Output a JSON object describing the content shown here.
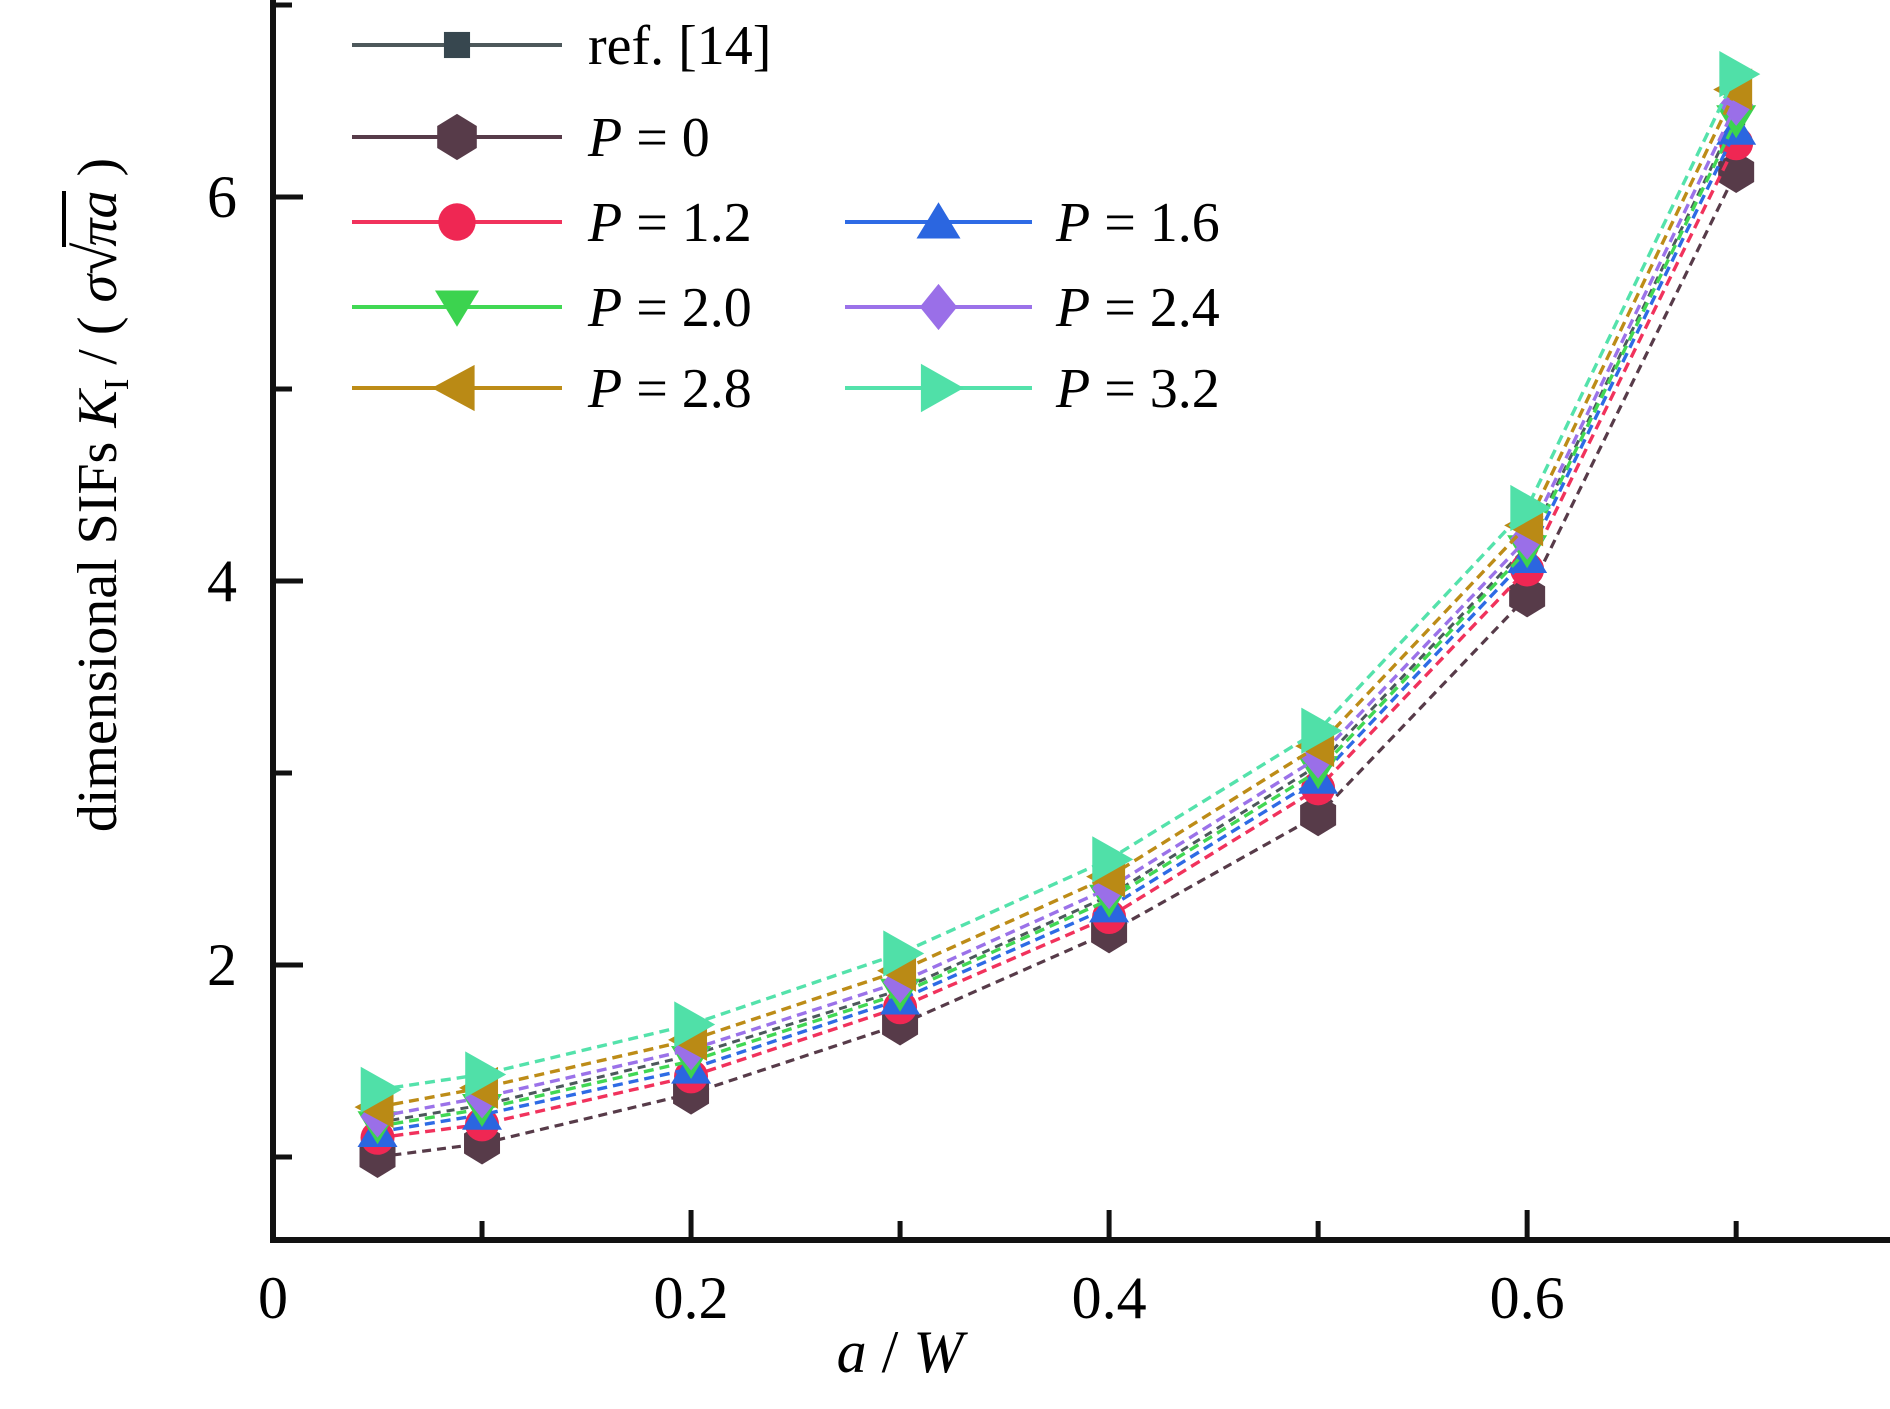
{
  "figure": {
    "background": "#ffffff",
    "text_color": "#000000",
    "axis_color": "#111111"
  },
  "labels": {
    "y": {
      "prefix": "dimensional SIFs ",
      "K": "K",
      "I_sub": "I",
      "mid": " / ( ",
      "sigma": "σ",
      "radical": "√",
      "radicand": "πa",
      "close": " )"
    },
    "x": {
      "a": "a",
      "slash": " / ",
      "W": "W"
    }
  },
  "chart_data": {
    "type": "line",
    "xlabel": "a / W",
    "ylabel": "dimensional SIFs K_I / ( σ√(πa) )",
    "xlim": [
      0,
      0.7736
    ],
    "ylim": [
      0.5677,
      7.026
    ],
    "grid": false,
    "legend_position": "upper-left, two columns",
    "x": [
      0.05,
      0.1,
      0.2,
      0.3,
      0.4,
      0.5,
      0.6,
      0.7
    ],
    "x_ticks": {
      "major": [
        {
          "v": 0,
          "label": "0"
        },
        {
          "v": 0.2,
          "label": "0.2"
        },
        {
          "v": 0.4,
          "label": "0.4"
        },
        {
          "v": 0.6,
          "label": "0.6"
        }
      ],
      "minor": [
        0.1,
        0.3,
        0.5,
        0.7
      ]
    },
    "y_ticks": {
      "major": [
        {
          "v": 2,
          "label": "2"
        },
        {
          "v": 4,
          "label": "4"
        },
        {
          "v": 6,
          "label": "6"
        }
      ],
      "minor": [
        1,
        3,
        5,
        7
      ]
    },
    "series": [
      {
        "name": "ref. [14]",
        "marker": "square",
        "color": "#4d585b",
        "marker_color": "#37474f",
        "dash": "8 6",
        "width": 3,
        "values": [
          1.18,
          1.27,
          1.53,
          1.87,
          2.36,
          3.04,
          4.18,
          6.42
        ]
      },
      {
        "name": "P = 0",
        "marker": "hexagon",
        "color": "#573b49",
        "marker_color": "#573b49",
        "dash": "9 6",
        "width": 3.2,
        "values": [
          1.0,
          1.07,
          1.33,
          1.69,
          2.17,
          2.78,
          3.92,
          6.13
        ]
      },
      {
        "name": "P = 1.2",
        "marker": "circle",
        "color": "#f1325c",
        "marker_color": "#ef2753",
        "dash": "10 6",
        "width": 3.4,
        "values": [
          1.1,
          1.17,
          1.42,
          1.78,
          2.25,
          2.92,
          4.06,
          6.28
        ]
      },
      {
        "name": "P = 1.6",
        "marker": "triangle-up",
        "color": "#2e6be5",
        "marker_color": "#2b66e0",
        "dash": "10 6",
        "width": 3.4,
        "values": [
          1.13,
          1.22,
          1.46,
          1.82,
          2.3,
          2.97,
          4.12,
          6.35
        ]
      },
      {
        "name": "P = 2.0",
        "marker": "triangle-down",
        "color": "#41d854",
        "marker_color": "#3cd34f",
        "dash": "10 6",
        "width": 3.4,
        "values": [
          1.16,
          1.25,
          1.5,
          1.85,
          2.34,
          3.01,
          4.16,
          6.4
        ]
      },
      {
        "name": "P = 2.4",
        "marker": "diamond",
        "color": "#9b72e9",
        "marker_color": "#9a6fe8",
        "dash": "10 6",
        "width": 3.4,
        "values": [
          1.21,
          1.31,
          1.56,
          1.91,
          2.4,
          3.08,
          4.22,
          6.48
        ]
      },
      {
        "name": "P = 2.8",
        "marker": "triangle-left",
        "color": "#bd8c17",
        "marker_color": "#ba8a15",
        "dash": "10 6",
        "width": 3.4,
        "values": [
          1.26,
          1.36,
          1.61,
          1.97,
          2.46,
          3.14,
          4.29,
          6.56
        ]
      },
      {
        "name": "P = 3.2",
        "marker": "triangle-right",
        "color": "#54e2ab",
        "marker_color": "#50e0a8",
        "dash": "10 6",
        "width": 3.4,
        "values": [
          1.35,
          1.43,
          1.69,
          2.06,
          2.55,
          3.22,
          4.38,
          6.64
        ]
      }
    ],
    "legend_items": [
      {
        "series": 0,
        "var": "",
        "rest": "ref. [14]",
        "col": 0,
        "row": 0
      },
      {
        "series": 1,
        "var": "P",
        "rest": " = 0",
        "col": 0,
        "row": 1
      },
      {
        "series": 2,
        "var": "P",
        "rest": " = 1.2",
        "col": 0,
        "row": 2
      },
      {
        "series": 4,
        "var": "P",
        "rest": " = 2.0",
        "col": 0,
        "row": 3
      },
      {
        "series": 6,
        "var": "P",
        "rest": " = 2.8",
        "col": 0,
        "row": 4
      },
      {
        "series": 3,
        "var": "P",
        "rest": " = 1.6",
        "col": 1,
        "row": 2
      },
      {
        "series": 5,
        "var": "P",
        "rest": " = 2.4",
        "col": 1,
        "row": 3
      },
      {
        "series": 7,
        "var": "P",
        "rest": " = 3.2",
        "col": 1,
        "row": 4
      }
    ]
  }
}
